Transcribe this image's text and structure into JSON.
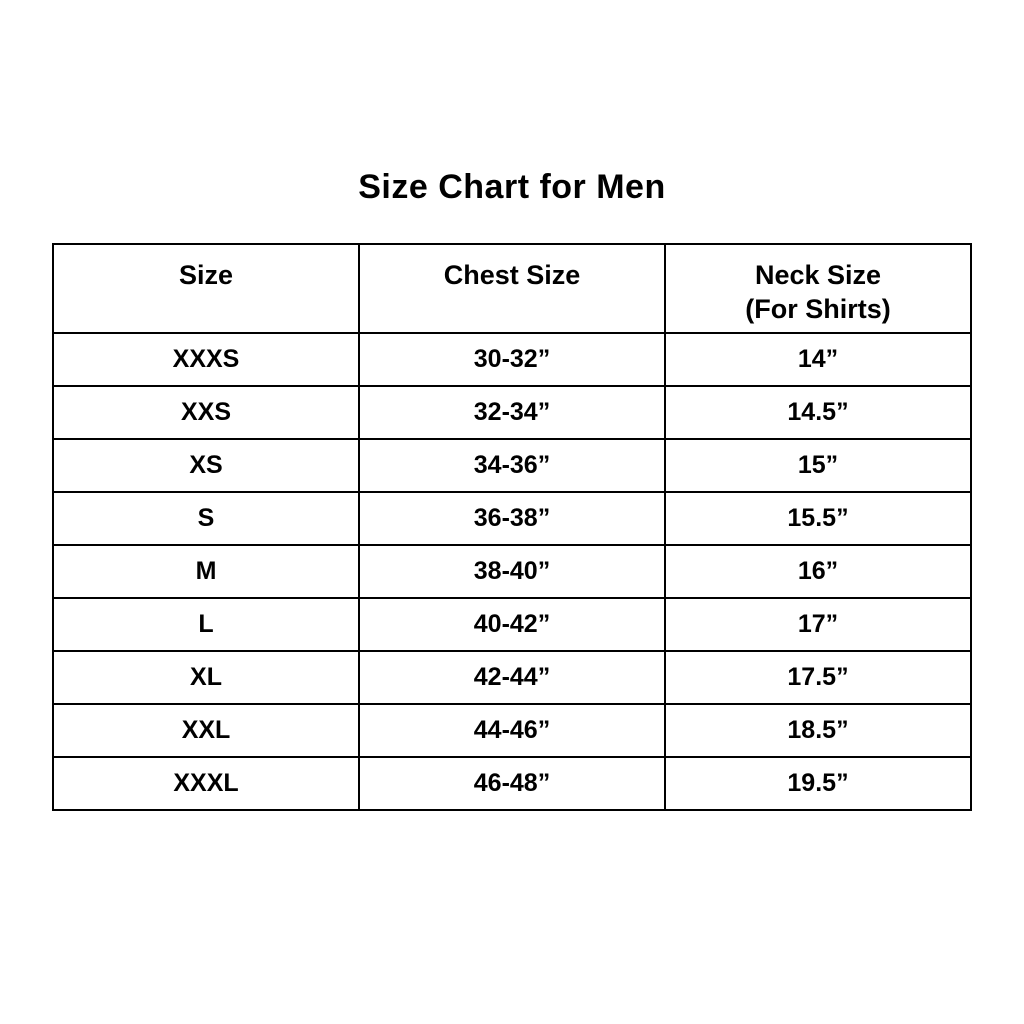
{
  "page": {
    "title": "Size Chart for Men",
    "colors": {
      "background": "#ffffff",
      "text": "#000000",
      "table_border": "#000000"
    }
  },
  "table": {
    "header": {
      "size": "Size",
      "chest": "Chest Size",
      "neck_line1": "Neck Size",
      "neck_line2": "(For Shirts)"
    },
    "rows": [
      {
        "size": "XXXS",
        "chest": "30-32”",
        "neck": "14”"
      },
      {
        "size": "XXS",
        "chest": "32-34”",
        "neck": "14.5”"
      },
      {
        "size": "XS",
        "chest": "34-36”",
        "neck": "15”"
      },
      {
        "size": "S",
        "chest": "36-38”",
        "neck": "15.5”"
      },
      {
        "size": "M",
        "chest": "38-40”",
        "neck": "16”"
      },
      {
        "size": "L",
        "chest": "40-42”",
        "neck": "17”"
      },
      {
        "size": "XL",
        "chest": "42-44”",
        "neck": "17.5”"
      },
      {
        "size": "XXL",
        "chest": "44-46”",
        "neck": "18.5”"
      },
      {
        "size": "XXXL",
        "chest": "46-48”",
        "neck": "19.5”"
      }
    ]
  },
  "chart_data": {
    "type": "table",
    "title": "Size Chart for Men",
    "columns": [
      "Size",
      "Chest Size",
      "Neck Size (For Shirts)"
    ],
    "rows": [
      [
        "XXXS",
        "30-32”",
        "14”"
      ],
      [
        "XXS",
        "32-34”",
        "14.5”"
      ],
      [
        "XS",
        "34-36”",
        "15”"
      ],
      [
        "S",
        "36-38”",
        "15.5”"
      ],
      [
        "M",
        "38-40”",
        "16”"
      ],
      [
        "L",
        "40-42”",
        "17”"
      ],
      [
        "XL",
        "42-44”",
        "17.5”"
      ],
      [
        "XXL",
        "44-46”",
        "18.5”"
      ],
      [
        "XXXL",
        "46-48”",
        "19.5”"
      ]
    ]
  }
}
